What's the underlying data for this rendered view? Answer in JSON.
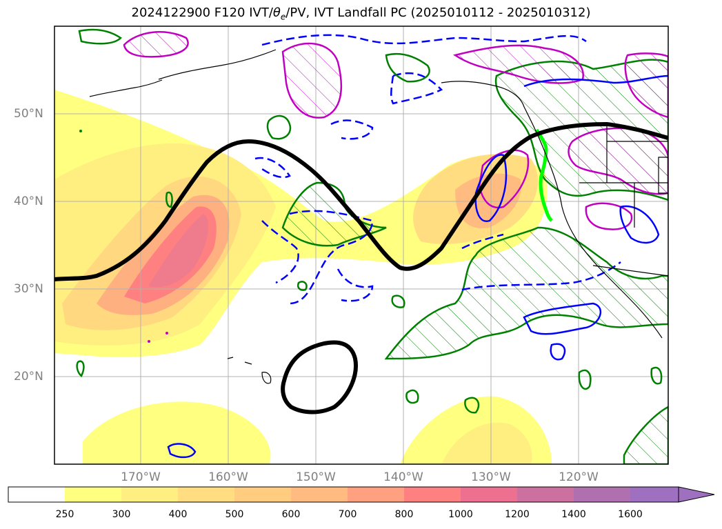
{
  "title_main": "2024122900 F120 IVT/",
  "title_theta": "θ",
  "title_sub": "e",
  "title_rest": "/PV, IVT Landfall PC (2025010112 - 2025010312)",
  "lat_labels": [
    "50°N",
    "40°N",
    "30°N",
    "20°N"
  ],
  "lon_labels": [
    "170°W",
    "160°W",
    "150°W",
    "140°W",
    "130°W",
    "120°W"
  ],
  "colorbar": {
    "ticks": [
      "250",
      "300",
      "400",
      "500",
      "600",
      "700",
      "800",
      "1000",
      "1200",
      "1400",
      "1600"
    ],
    "colors": [
      "#ffffff",
      "#ffff80",
      "#ffee80",
      "#ffdd80",
      "#ffcc80",
      "#ffbb80",
      "#ffa080",
      "#ff8080",
      "#ee7090",
      "#cc70a0",
      "#b070b0",
      "#a070c0"
    ]
  },
  "colors": {
    "ivt_contour": "#000000",
    "pv_positive": "#008000",
    "pv_negative": "#0000ff",
    "theta_e": "#c000c0",
    "landfall": "#00ff00",
    "grid": "#b0b0b0"
  }
}
